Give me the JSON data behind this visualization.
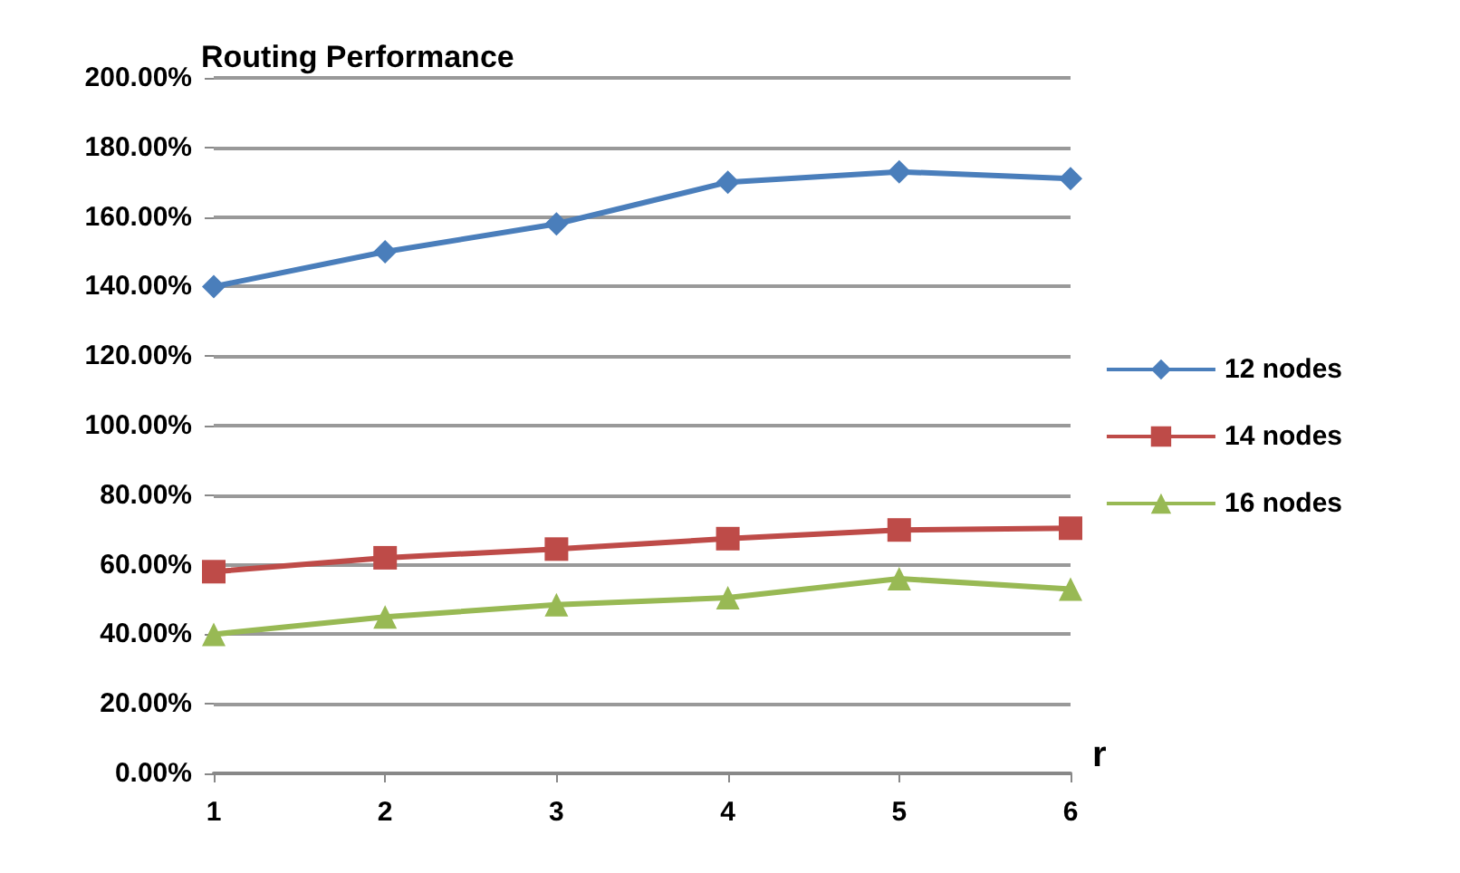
{
  "chart_data": {
    "type": "line",
    "title": "Routing Performance",
    "xlabel": "r",
    "categories": [
      "1",
      "2",
      "3",
      "4",
      "5",
      "6"
    ],
    "series": [
      {
        "name": "12 nodes",
        "color": "#4a7ebb",
        "marker": "diamond",
        "values": [
          140,
          150,
          158,
          170,
          173,
          171
        ]
      },
      {
        "name": "14 nodes",
        "color": "#be4b48",
        "marker": "square",
        "values": [
          58,
          62,
          64.5,
          67.5,
          70,
          70.5
        ]
      },
      {
        "name": "16 nodes",
        "color": "#98b954",
        "marker": "triangle",
        "values": [
          40,
          45,
          48.5,
          50.5,
          56,
          53
        ]
      }
    ],
    "ylim": [
      0,
      200
    ],
    "yticks": [
      {
        "value": 0,
        "label": "0.00%"
      },
      {
        "value": 20,
        "label": "20.00%"
      },
      {
        "value": 40,
        "label": "40.00%"
      },
      {
        "value": 60,
        "label": "60.00%"
      },
      {
        "value": 80,
        "label": "80.00%"
      },
      {
        "value": 100,
        "label": "100.00%"
      },
      {
        "value": 120,
        "label": "120.00%"
      },
      {
        "value": 140,
        "label": "140.00%"
      },
      {
        "value": 160,
        "label": "160.00%"
      },
      {
        "value": 180,
        "label": "180.00%"
      },
      {
        "value": 200,
        "label": "200.00%"
      }
    ],
    "grid": "y",
    "legend": "right",
    "line_style": "solid"
  }
}
